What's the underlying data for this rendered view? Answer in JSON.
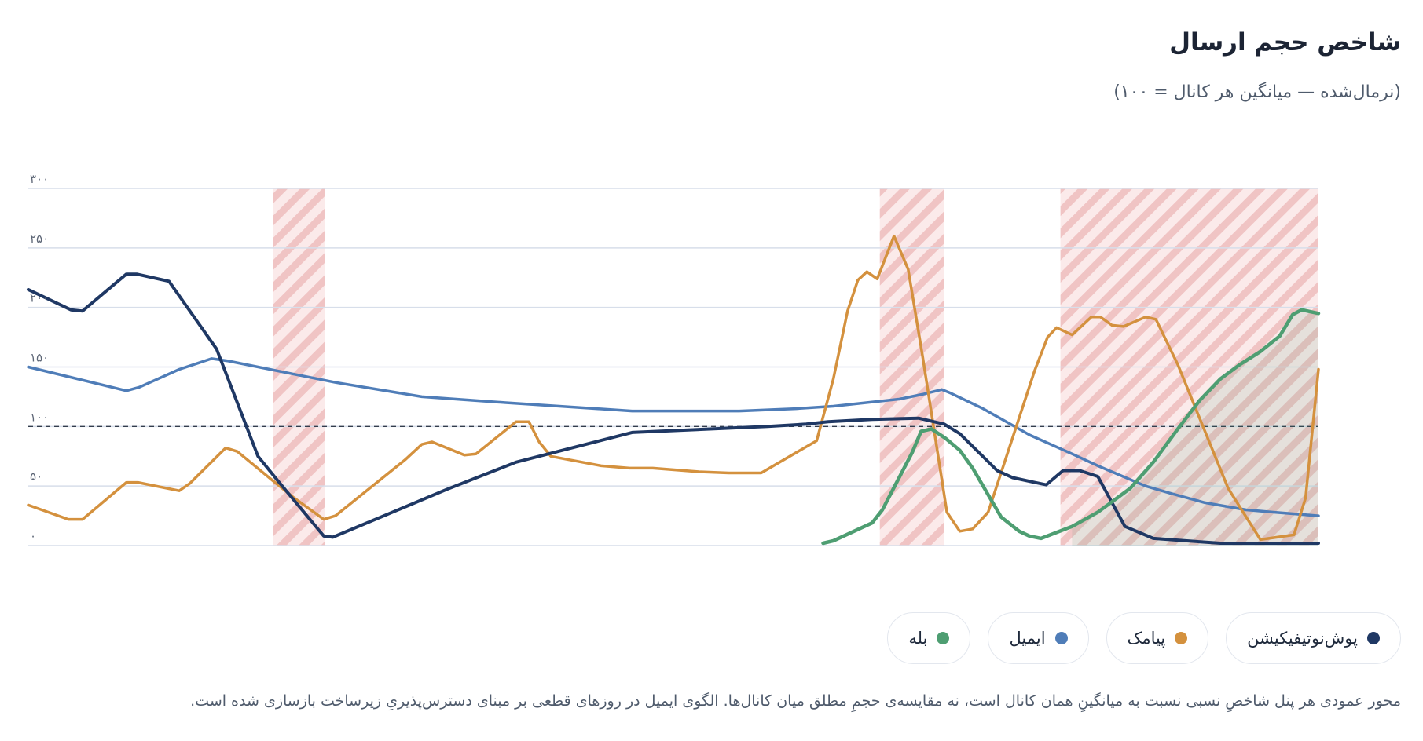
{
  "title": "شاخص حجم ارسال",
  "subtitle": "(نرمال‌شده — میانگین هر کانال = ۱۰۰)",
  "footnote": "محور عمودی هر پنل شاخصِ نسبی نسبت به میانگینِ همان کانال است، نه مقایسه‌ی حجمِ مطلق میان کانال‌ها. الگوی ایمیل در روزهای قطعی بر مبنای دسترس‌پذیریِ زیرساخت بازسازی شده است.",
  "colors": {
    "push": "#1f3864",
    "sms": "#d4913e",
    "email": "#4f7db8",
    "bale": "#4e9e72",
    "outage": "#e8a3a3",
    "grid": "#d7deea",
    "baseline": "#333d4d"
  },
  "legend": [
    {
      "label": "پوش‌نوتیفیکیشن",
      "color": "#1f3864"
    },
    {
      "label": "پیامک",
      "color": "#d4913e"
    },
    {
      "label": "ایمیل",
      "color": "#4f7db8"
    },
    {
      "label": "بله",
      "color": "#4e9e72"
    }
  ],
  "chart_data": {
    "type": "line",
    "title": "شاخص حجم ارسال",
    "subtitle": "(نرمال‌شده — میانگین هر کانال = ۱۰۰)",
    "ylim": [
      0,
      300
    ],
    "xlim": [
      0,
      100
    ],
    "yticks": [
      0,
      50,
      100,
      150,
      200,
      250,
      300
    ],
    "ytick_labels": [
      "۰",
      "۵۰",
      "۱۰۰",
      "۱۵۰",
      "۲۰۰",
      "۲۵۰",
      "۳۰۰"
    ],
    "reference_line": 100,
    "grid": true,
    "legend_position": "bottom-right",
    "outage_ranges": [
      [
        19,
        23
      ],
      [
        66,
        71
      ],
      [
        80,
        100
      ]
    ],
    "series": [
      {
        "name": "پوش‌نوتیفیکیشن",
        "key": "push",
        "points": [
          [
            0,
            215
          ],
          [
            3.3,
            198
          ],
          [
            4.2,
            197
          ],
          [
            7.6,
            228
          ],
          [
            8.4,
            228
          ],
          [
            10.9,
            222
          ],
          [
            14.6,
            165
          ],
          [
            17.8,
            75
          ],
          [
            19.3,
            55
          ],
          [
            22.9,
            8
          ],
          [
            23.6,
            7
          ],
          [
            32.4,
            47
          ],
          [
            37.8,
            70
          ],
          [
            46.8,
            95
          ],
          [
            57.3,
            100
          ],
          [
            60.3,
            102
          ],
          [
            62,
            104
          ],
          [
            65.4,
            106
          ],
          [
            69,
            107
          ],
          [
            71,
            102
          ],
          [
            72.2,
            94
          ],
          [
            75.1,
            63
          ],
          [
            76.3,
            57
          ],
          [
            78,
            53
          ],
          [
            78.9,
            51
          ],
          [
            80.2,
            63
          ],
          [
            81.5,
            63
          ],
          [
            82.9,
            58
          ],
          [
            84,
            36
          ],
          [
            85,
            16
          ],
          [
            87.2,
            6
          ],
          [
            89.7,
            4
          ],
          [
            92.4,
            2
          ],
          [
            100,
            2
          ]
        ]
      },
      {
        "name": "پیامک",
        "key": "sms",
        "points": [
          [
            0,
            34
          ],
          [
            3.1,
            22
          ],
          [
            4.2,
            22
          ],
          [
            7.6,
            53
          ],
          [
            8.5,
            53
          ],
          [
            11.7,
            46
          ],
          [
            12.5,
            52
          ],
          [
            15.3,
            82
          ],
          [
            16.2,
            79
          ],
          [
            18.9,
            55
          ],
          [
            20.6,
            40
          ],
          [
            22.9,
            22
          ],
          [
            23.8,
            25
          ],
          [
            29.2,
            72
          ],
          [
            30.5,
            85
          ],
          [
            31.3,
            87
          ],
          [
            33.8,
            76
          ],
          [
            34.7,
            77
          ],
          [
            37.8,
            104
          ],
          [
            38.8,
            104
          ],
          [
            39.6,
            87
          ],
          [
            40.5,
            75
          ],
          [
            44.4,
            67
          ],
          [
            46.6,
            65
          ],
          [
            48.4,
            65
          ],
          [
            52,
            62
          ],
          [
            54.3,
            61
          ],
          [
            56.8,
            61
          ],
          [
            61.1,
            88
          ],
          [
            62.4,
            140
          ],
          [
            63.5,
            197
          ],
          [
            64.3,
            223
          ],
          [
            65,
            230
          ],
          [
            65.8,
            224
          ],
          [
            67.1,
            260
          ],
          [
            68.2,
            232
          ],
          [
            69.3,
            160
          ],
          [
            71.2,
            28
          ],
          [
            72.2,
            12
          ],
          [
            73.2,
            14
          ],
          [
            74.4,
            28
          ],
          [
            78,
            147
          ],
          [
            79,
            175
          ],
          [
            79.7,
            183
          ],
          [
            80.9,
            177
          ],
          [
            82.4,
            192
          ],
          [
            83.1,
            192
          ],
          [
            84,
            185
          ],
          [
            84.9,
            184
          ],
          [
            86.6,
            192
          ],
          [
            87.4,
            190
          ],
          [
            89.1,
            152
          ],
          [
            93,
            48
          ],
          [
            95.5,
            5
          ],
          [
            98.1,
            9
          ],
          [
            99,
            40
          ],
          [
            100,
            148
          ]
        ]
      },
      {
        "name": "ایمیل",
        "key": "email",
        "points": [
          [
            0,
            150
          ],
          [
            7.6,
            130
          ],
          [
            8.6,
            133
          ],
          [
            11.7,
            148
          ],
          [
            14.2,
            157
          ],
          [
            15.5,
            155
          ],
          [
            23.8,
            137
          ],
          [
            30.5,
            125
          ],
          [
            37,
            120
          ],
          [
            46.8,
            113
          ],
          [
            55.1,
            113
          ],
          [
            59.5,
            115
          ],
          [
            62.4,
            117
          ],
          [
            67.5,
            123
          ],
          [
            69.3,
            127
          ],
          [
            70.8,
            131
          ],
          [
            71.5,
            128
          ],
          [
            74,
            115
          ],
          [
            77.6,
            93
          ],
          [
            80.9,
            77
          ],
          [
            82.9,
            67
          ],
          [
            86.6,
            50
          ],
          [
            88.5,
            44
          ],
          [
            91.2,
            36
          ],
          [
            94.4,
            30
          ],
          [
            96.5,
            28
          ],
          [
            100,
            25
          ]
        ]
      },
      {
        "name": "بله",
        "key": "bale",
        "points": [
          [
            61.6,
            2
          ],
          [
            62.4,
            4
          ],
          [
            65.4,
            19
          ],
          [
            66.2,
            30
          ],
          [
            68.5,
            78
          ],
          [
            69.2,
            96
          ],
          [
            70,
            98
          ],
          [
            71.1,
            90
          ],
          [
            72.2,
            80
          ],
          [
            73.2,
            65
          ],
          [
            75.4,
            24
          ],
          [
            76.8,
            12
          ],
          [
            77.6,
            8
          ],
          [
            78.5,
            6
          ],
          [
            80.9,
            16
          ],
          [
            82.9,
            28
          ],
          [
            85.4,
            48
          ],
          [
            87.2,
            70
          ],
          [
            89.1,
            98
          ],
          [
            90.8,
            122
          ],
          [
            92.4,
            140
          ],
          [
            93.9,
            152
          ],
          [
            95.5,
            163
          ],
          [
            97,
            176
          ],
          [
            98,
            194
          ],
          [
            98.7,
            198
          ],
          [
            100,
            195
          ]
        ]
      }
    ]
  }
}
